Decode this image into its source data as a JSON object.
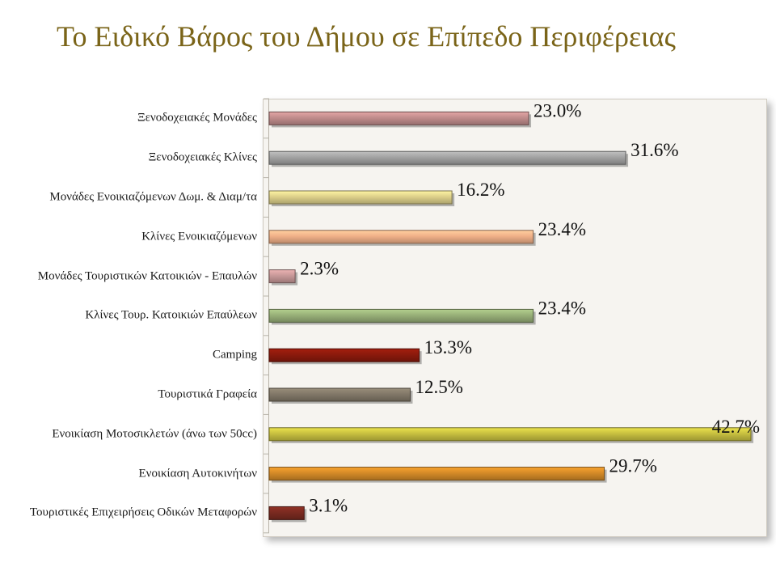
{
  "title": "Το Ειδικό Βάρος του Δήμου σε Επίπεδο Περιφέρειας",
  "chart_data": {
    "type": "bar",
    "orientation": "horizontal",
    "title": "Το Ειδικό Βάρος του Δήμου σε Επίπεδο Περιφέρειας",
    "categories": [
      "Ξενοδοχειακές Μονάδες",
      "Ξενοδοχειακές Κλίνες",
      "Μονάδες Ενοικιαζόμενων Δωμ. & Διαμ/τα",
      "Κλίνες Ενοικιαζόμενων",
      "Μονάδες Τουριστικών Κατοικιών - Επαυλών",
      "Κλίνες Τουρ. Κατοικιών   Επαύλεων",
      "Camping",
      "Τουριστικά Γραφεία",
      "Ενοικίαση Μοτοσικλετών (άνω των 50cc)",
      "Ενοικίαση Αυτοκινήτων",
      "Τουριστικές Επιχειρήσεις Οδικών Μεταφορών"
    ],
    "values": [
      23.0,
      31.6,
      16.2,
      23.4,
      2.3,
      23.4,
      13.3,
      12.5,
      42.7,
      29.7,
      3.1
    ],
    "value_labels": [
      "23.0%",
      "31.6%",
      "16.2%",
      "23.4%",
      "2.3%",
      "23.4%",
      "13.3%",
      "12.5%",
      "42.7%",
      "29.7%",
      "3.1%"
    ],
    "colors": [
      "#c08c8c",
      "#a3a3a3",
      "#ddd08a",
      "#f0b088",
      "#c89898",
      "#98b078",
      "#8b1a0c",
      "#827868",
      "#c8c040",
      "#d48a28",
      "#7a2a20"
    ],
    "xlim": [
      0,
      45
    ],
    "grid": false,
    "legend": "none"
  }
}
